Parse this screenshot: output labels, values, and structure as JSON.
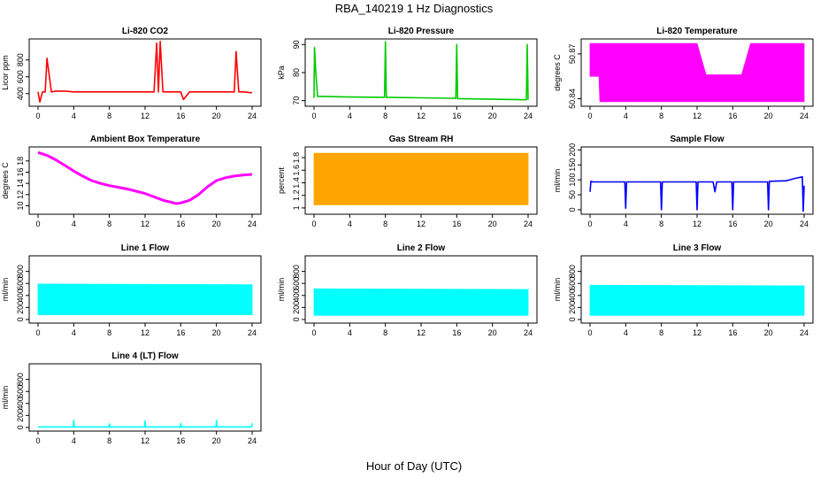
{
  "title": "RBA_140219  1 Hz Diagnostics",
  "xlabel": "Hour of Day (UTC)",
  "chart_data": [
    {
      "type": "line",
      "title": "Li-820 CO2",
      "ylabel": "Licor ppm",
      "color": "#ff0000",
      "xlim": [
        0,
        24
      ],
      "ylim": [
        250,
        1050
      ],
      "xticks": [
        0,
        4,
        8,
        12,
        16,
        20,
        24
      ],
      "yticks": [
        400,
        600,
        800
      ],
      "series": [
        {
          "x": [
            0,
            0.2,
            0.5,
            0.8,
            1.0,
            1.5,
            2.0,
            3.0,
            4.0,
            5.0,
            6.0,
            7.0,
            8.0,
            9.0,
            10.0,
            11.0,
            12.0,
            13.0,
            13.3,
            13.5,
            13.7,
            14.0,
            15.0,
            16.0,
            16.3,
            17.0,
            18.0,
            19.0,
            20.0,
            21.0,
            21.5,
            22.0,
            22.2,
            22.5,
            23.0,
            24.0
          ],
          "y": [
            420,
            300,
            420,
            420,
            820,
            420,
            430,
            430,
            420,
            420,
            420,
            420,
            420,
            420,
            420,
            420,
            420,
            420,
            1000,
            420,
            1020,
            420,
            420,
            420,
            330,
            420,
            420,
            420,
            420,
            420,
            420,
            420,
            900,
            420,
            420,
            410
          ]
        }
      ]
    },
    {
      "type": "line",
      "title": "Li-820 Pressure",
      "ylabel": "kPa",
      "color": "#00cc00",
      "xlim": [
        0,
        24
      ],
      "ylim": [
        68,
        92
      ],
      "xticks": [
        0,
        4,
        8,
        12,
        16,
        20,
        24
      ],
      "yticks": [
        70,
        80,
        90
      ],
      "series": [
        {
          "x": [
            0,
            0.05,
            0.2,
            0.4,
            1,
            4,
            7.9,
            8.0,
            8.1,
            12,
            15.9,
            16.0,
            16.1,
            20,
            23.8,
            23.9,
            24.0
          ],
          "y": [
            71,
            89,
            80,
            71.5,
            71.5,
            71.3,
            71.2,
            91,
            71.2,
            71.0,
            70.8,
            90,
            70.7,
            70.5,
            70.3,
            90,
            70.3
          ]
        }
      ]
    },
    {
      "type": "band",
      "title": "Li-820 Temperature",
      "ylabel": "degrees C",
      "color": "#ff00ff",
      "xlim": [
        0,
        24
      ],
      "ylim": [
        50.835,
        50.88
      ],
      "xticks": [
        0,
        4,
        8,
        12,
        16,
        20,
        24
      ],
      "yticks": [
        50.84,
        50.87
      ],
      "series": [
        {
          "x": [
            0,
            1,
            1.1,
            2,
            12,
            13,
            14,
            17,
            18,
            24
          ],
          "low": [
            50.855,
            50.855,
            50.838,
            50.838,
            50.838,
            50.838,
            50.838,
            50.838,
            50.838,
            50.838
          ],
          "high": [
            50.877,
            50.877,
            50.877,
            50.877,
            50.877,
            50.856,
            50.856,
            50.856,
            50.877,
            50.877
          ]
        }
      ]
    },
    {
      "type": "line",
      "title": "Ambient Box Temperature",
      "ylabel": "degrees C",
      "color": "#ff00ff",
      "xlim": [
        0,
        24
      ],
      "ylim": [
        8.5,
        20.5
      ],
      "xticks": [
        0,
        4,
        8,
        12,
        16,
        20,
        24
      ],
      "yticks": [
        10,
        12,
        14,
        16,
        18
      ],
      "series": [
        {
          "x": [
            0,
            1,
            2,
            3,
            4,
            5,
            6,
            7,
            8,
            9,
            10,
            11,
            12,
            13,
            14,
            15,
            15.5,
            16,
            17,
            18,
            19,
            20,
            21,
            22,
            23,
            24
          ],
          "y": [
            19.5,
            19.0,
            18.2,
            17.2,
            16.2,
            15.3,
            14.5,
            14.0,
            13.6,
            13.3,
            13.0,
            12.6,
            12.2,
            11.6,
            11.0,
            10.6,
            10.4,
            10.5,
            11.0,
            12.0,
            13.4,
            14.5,
            15.0,
            15.3,
            15.5,
            15.6
          ]
        }
      ]
    },
    {
      "type": "band",
      "title": "Gas Stream RH",
      "ylabel": "percent",
      "color": "#ffa500",
      "xlim": [
        0,
        24
      ],
      "ylim": [
        0.9,
        1.97
      ],
      "xticks": [
        0,
        4,
        8,
        12,
        16,
        20,
        24
      ],
      "yticks": [
        1.0,
        1.2,
        1.4,
        1.6,
        1.8
      ],
      "series": [
        {
          "x": [
            0,
            24
          ],
          "low": [
            1.05,
            1.05
          ],
          "high": [
            1.87,
            1.87
          ]
        }
      ]
    },
    {
      "type": "line",
      "title": "Sample Flow",
      "ylabel": "ml/min",
      "color": "#0000ff",
      "xlim": [
        0,
        24
      ],
      "ylim": [
        -15,
        210
      ],
      "xticks": [
        0,
        4,
        8,
        12,
        16,
        20,
        24
      ],
      "yticks": [
        0,
        50,
        100,
        150,
        200
      ],
      "series": [
        {
          "x": [
            0,
            0.1,
            0.3,
            3.9,
            4.0,
            4.1,
            7.9,
            8.0,
            8.1,
            11.9,
            12.0,
            12.1,
            13.8,
            14.0,
            14.2,
            15.9,
            16.0,
            16.1,
            19.9,
            20.0,
            20.1,
            22,
            23,
            23.8,
            23.9,
            24.0
          ],
          "y": [
            60,
            95,
            93,
            93,
            5,
            93,
            93,
            0,
            93,
            93,
            0,
            93,
            93,
            60,
            93,
            93,
            0,
            93,
            93,
            0,
            95,
            97,
            105,
            110,
            -5,
            80
          ]
        }
      ]
    },
    {
      "type": "band",
      "title": "Line 1 Flow",
      "ylabel": "ml/min",
      "color": "#00ffff",
      "xlim": [
        0,
        24
      ],
      "ylim": [
        -60,
        1060
      ],
      "xticks": [
        0,
        4,
        8,
        12,
        16,
        20,
        24
      ],
      "yticks": [
        0,
        200,
        400,
        600,
        800
      ],
      "series": [
        {
          "x": [
            0,
            24
          ],
          "low": [
            80,
            80
          ],
          "high": [
            590,
            580
          ]
        }
      ]
    },
    {
      "type": "band",
      "title": "Line 2 Flow",
      "ylabel": "ml/min",
      "color": "#00ffff",
      "xlim": [
        0,
        24
      ],
      "ylim": [
        -60,
        1060
      ],
      "xticks": [
        0,
        4,
        8,
        12,
        16,
        20,
        24
      ],
      "yticks": [
        0,
        200,
        400,
        600,
        800
      ],
      "series": [
        {
          "x": [
            0,
            24
          ],
          "low": [
            70,
            70
          ],
          "high": [
            510,
            500
          ]
        }
      ]
    },
    {
      "type": "band",
      "title": "Line 3 Flow",
      "ylabel": "ml/min",
      "color": "#00ffff",
      "xlim": [
        0,
        24
      ],
      "ylim": [
        -60,
        1060
      ],
      "xticks": [
        0,
        4,
        8,
        12,
        16,
        20,
        24
      ],
      "yticks": [
        0,
        200,
        400,
        600,
        800
      ],
      "series": [
        {
          "x": [
            0,
            24
          ],
          "low": [
            70,
            70
          ],
          "high": [
            570,
            560
          ]
        }
      ]
    },
    {
      "type": "line",
      "title": "Line 4 (LT) Flow",
      "ylabel": "ml/min",
      "color": "#00ffff",
      "xlim": [
        0,
        24
      ],
      "ylim": [
        -60,
        1060
      ],
      "xticks": [
        0,
        4,
        8,
        12,
        16,
        20,
        24
      ],
      "yticks": [
        0,
        200,
        400,
        600,
        800
      ],
      "series": [
        {
          "x": [
            0,
            3.95,
            4.0,
            4.05,
            7.95,
            8.0,
            8.05,
            11.95,
            12.0,
            12.05,
            15.95,
            16.0,
            16.05,
            19.95,
            20.0,
            20.05,
            23.95,
            24.0
          ],
          "y": [
            10,
            10,
            120,
            10,
            10,
            60,
            10,
            10,
            110,
            10,
            10,
            70,
            10,
            10,
            120,
            10,
            10,
            70
          ]
        }
      ]
    }
  ]
}
